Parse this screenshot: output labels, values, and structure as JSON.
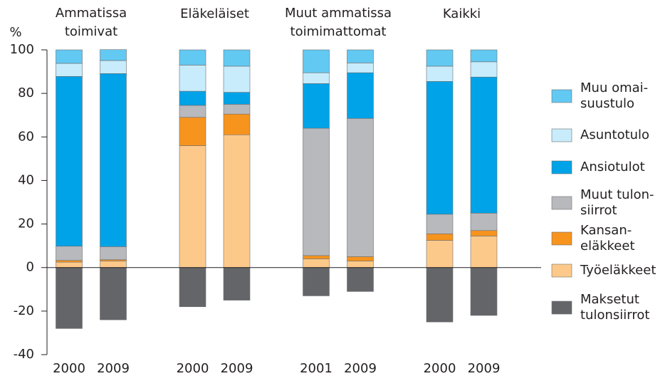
{
  "chart_data": {
    "type": "stacked-bar",
    "y_label": "%",
    "groups": [
      {
        "label": "Ammatissa\ntoimivat",
        "categories": [
          "2000",
          "2009"
        ]
      },
      {
        "label": "Eläkeläiset",
        "categories": [
          "2000",
          "2009"
        ]
      },
      {
        "label": "Muut ammatissa\ntoimimattomat",
        "categories": [
          "2001",
          "2009"
        ]
      },
      {
        "label": "Kaikki",
        "categories": [
          "2000",
          "2009"
        ]
      }
    ],
    "series": [
      {
        "name": "Työeläkkeet",
        "color": "#fdc98a",
        "values": [
          2.5,
          3,
          56,
          61,
          4,
          3,
          12.5,
          14.5
        ]
      },
      {
        "name": "Kansan-\neläkkeet",
        "color": "#f7941d",
        "values": [
          0.8,
          0.6,
          13,
          9.5,
          1.5,
          2,
          3,
          2.5
        ]
      },
      {
        "name": "Muut tulon-\nsiirrot",
        "color": "#b8b9bd",
        "values": [
          6.5,
          6,
          5.5,
          4.5,
          58.5,
          63.5,
          9,
          8
        ]
      },
      {
        "name": "Ansiotulot",
        "color": "#00a3e8",
        "values": [
          78,
          79.5,
          6.5,
          5.5,
          20.5,
          21,
          61,
          62.5
        ]
      },
      {
        "name": "Asuntotulo",
        "color": "#c8ecfb",
        "values": [
          6,
          6,
          12,
          12,
          5,
          4.5,
          7,
          7
        ]
      },
      {
        "name": "Muu omai-\nsuustulo",
        "color": "#62c9f2",
        "values": [
          6.2,
          5,
          7,
          7.5,
          10.5,
          6,
          7.5,
          5.5
        ]
      },
      {
        "name": "Maksetut\ntulonsiirrot",
        "color": "#646569",
        "values": [
          -28,
          -24,
          -18,
          -15,
          -13,
          -11,
          -25,
          -22
        ]
      }
    ],
    "legend_order": [
      5,
      4,
      3,
      2,
      1,
      0,
      6
    ],
    "ylim": [
      -40,
      100
    ],
    "yticks": [
      -40,
      -20,
      0,
      20,
      40,
      60,
      80,
      100
    ]
  }
}
